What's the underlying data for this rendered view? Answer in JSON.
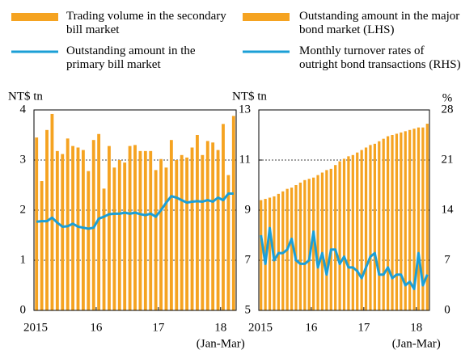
{
  "chart_data": [
    {
      "type": "combo",
      "ylabel": "NT$ tn",
      "ylim": [
        0,
        4
      ],
      "yticks": [
        0,
        1,
        2,
        3,
        4
      ],
      "grid": true,
      "x_note": "(Jan-Mar)",
      "categories": [
        "2015",
        null,
        null,
        null,
        null,
        null,
        null,
        null,
        null,
        null,
        null,
        null,
        "16",
        null,
        null,
        null,
        null,
        null,
        null,
        null,
        null,
        null,
        null,
        null,
        "17",
        null,
        null,
        null,
        null,
        null,
        null,
        null,
        null,
        null,
        null,
        null,
        "18",
        null,
        null
      ],
      "series": [
        {
          "name": "Trading volume in the secondary bill market",
          "type": "bar",
          "color": "#f5a321",
          "values": [
            3.45,
            2.58,
            3.6,
            3.92,
            3.18,
            3.12,
            3.43,
            3.28,
            3.25,
            3.2,
            2.78,
            3.4,
            3.52,
            2.43,
            3.28,
            2.85,
            3.0,
            2.95,
            3.28,
            3.3,
            3.18,
            3.18,
            3.18,
            2.8,
            3.02,
            2.85,
            3.4,
            3.0,
            3.1,
            3.05,
            3.25,
            3.5,
            3.1,
            3.38,
            3.35,
            3.2,
            3.72,
            2.7,
            3.88
          ]
        },
        {
          "name": "Outstanding amount in the primary bill market",
          "type": "line",
          "color": "#1b9fd6",
          "values": [
            1.77,
            1.78,
            1.78,
            1.85,
            1.75,
            1.67,
            1.68,
            1.73,
            1.67,
            1.65,
            1.63,
            1.65,
            1.83,
            1.87,
            1.92,
            1.93,
            1.93,
            1.95,
            1.93,
            1.95,
            1.92,
            1.9,
            1.93,
            1.87,
            2.0,
            2.15,
            2.28,
            2.25,
            2.2,
            2.15,
            2.17,
            2.18,
            2.17,
            2.2,
            2.17,
            2.25,
            2.2,
            2.33,
            2.33
          ]
        }
      ]
    },
    {
      "type": "combo",
      "ylabel": "NT$ tn",
      "y2label": "%",
      "ylim": [
        5,
        13
      ],
      "yticks": [
        5,
        7,
        9,
        11,
        13
      ],
      "y2lim": [
        0,
        28
      ],
      "y2ticks": [
        0,
        7,
        14,
        21,
        28
      ],
      "grid": true,
      "x_note": "(Jan-Mar)",
      "categories": [
        "2015",
        null,
        null,
        null,
        null,
        null,
        null,
        null,
        null,
        null,
        null,
        null,
        "16",
        null,
        null,
        null,
        null,
        null,
        null,
        null,
        null,
        null,
        null,
        null,
        "17",
        null,
        null,
        null,
        null,
        null,
        null,
        null,
        null,
        null,
        null,
        null,
        "18",
        null,
        null
      ],
      "series": [
        {
          "name": "Outstanding amount in the major bond market (LHS)",
          "type": "bar",
          "color": "#f5a321",
          "values": [
            9.4,
            9.45,
            9.5,
            9.55,
            9.65,
            9.75,
            9.85,
            9.9,
            10.0,
            10.1,
            10.2,
            10.25,
            10.3,
            10.4,
            10.5,
            10.6,
            10.65,
            10.8,
            10.95,
            11.05,
            11.15,
            11.2,
            11.3,
            11.4,
            11.5,
            11.6,
            11.65,
            11.75,
            11.85,
            11.95,
            12.0,
            12.05,
            12.1,
            12.15,
            12.2,
            12.25,
            12.3,
            12.3,
            12.45
          ]
        },
        {
          "name": "Monthly turnover rates of outright bond transactions (RHS)",
          "type": "line",
          "axis": "y2",
          "color": "#1b9fd6",
          "values": [
            10.5,
            6.5,
            11.5,
            7,
            8,
            8,
            8.5,
            10,
            7,
            6.5,
            6.5,
            7,
            11,
            6,
            8,
            5,
            8.5,
            8.5,
            6.5,
            7.5,
            6,
            6,
            5.5,
            4.5,
            6,
            7.5,
            8,
            5,
            5,
            6,
            4.5,
            5,
            5,
            3.5,
            4,
            3,
            8,
            3.5,
            5
          ]
        }
      ]
    }
  ]
}
